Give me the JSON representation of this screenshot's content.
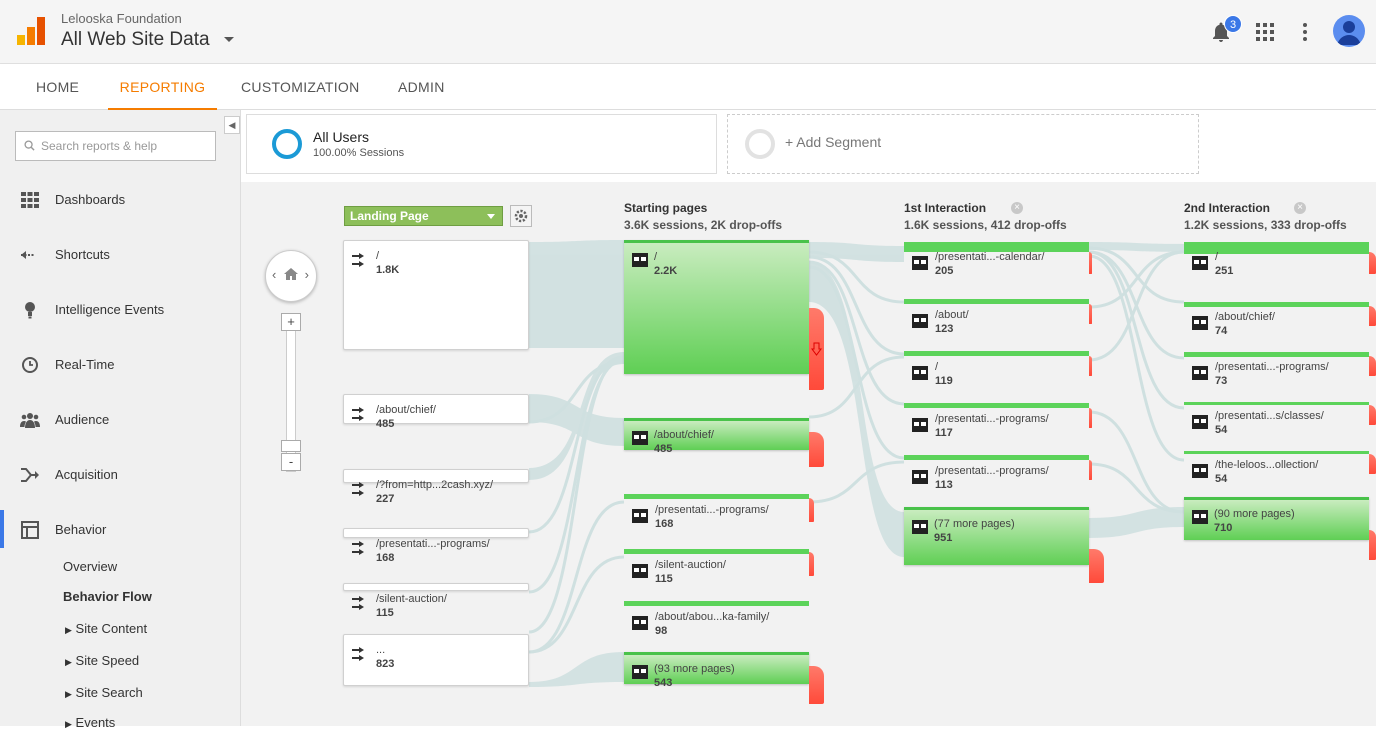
{
  "header": {
    "org": "Lelooska Foundation",
    "property": "All Web Site Data",
    "notification_count": "3"
  },
  "nav_tabs": [
    "HOME",
    "REPORTING",
    "CUSTOMIZATION",
    "ADMIN"
  ],
  "active_tab": "REPORTING",
  "sidebar": {
    "search_placeholder": "Search reports & help",
    "items": [
      "Dashboards",
      "Shortcuts",
      "Intelligence Events",
      "Real-Time",
      "Audience",
      "Acquisition",
      "Behavior"
    ],
    "behavior_sub": [
      "Overview",
      "Behavior Flow",
      "Site Content",
      "Site Speed",
      "Site Search",
      "Events"
    ]
  },
  "segments": {
    "all_users": "All Users",
    "all_users_sub": "100.00% Sessions",
    "add_segment": "+ Add Segment"
  },
  "flow": {
    "dimension": "Landing Page",
    "columns": [
      {
        "title": "Starting pages",
        "sub": "3.6K sessions, 2K drop-offs"
      },
      {
        "title": "1st Interaction",
        "sub": "1.6K sessions, 412 drop-offs"
      },
      {
        "title": "2nd Interaction",
        "sub": "1.2K sessions, 333 drop-offs"
      }
    ],
    "landing": [
      {
        "label": "/",
        "count": "1.8K"
      },
      {
        "label": "/about/chief/",
        "count": "485"
      },
      {
        "label": "/?from=http...2cash.xyz/",
        "count": "227"
      },
      {
        "label": "/presentati...-programs/",
        "count": "168"
      },
      {
        "label": "/silent-auction/",
        "count": "115"
      },
      {
        "label": "...",
        "count": "823"
      }
    ],
    "starting": [
      {
        "label": "/",
        "count": "2.2K"
      },
      {
        "label": "/about/chief/",
        "count": "485"
      },
      {
        "label": "/presentati...-programs/",
        "count": "168"
      },
      {
        "label": "/silent-auction/",
        "count": "115"
      },
      {
        "label": "/about/abou...ka-family/",
        "count": "98"
      },
      {
        "label": "(93 more pages)",
        "count": "543"
      }
    ],
    "first": [
      {
        "label": "/presentati...-calendar/",
        "count": "205"
      },
      {
        "label": "/about/",
        "count": "123"
      },
      {
        "label": "/",
        "count": "119"
      },
      {
        "label": "/presentati...-programs/",
        "count": "117"
      },
      {
        "label": "/presentati...-programs/",
        "count": "113"
      },
      {
        "label": "(77 more pages)",
        "count": "951"
      }
    ],
    "second": [
      {
        "label": "/",
        "count": "251"
      },
      {
        "label": "/about/chief/",
        "count": "74"
      },
      {
        "label": "/presentati...-programs/",
        "count": "73"
      },
      {
        "label": "/presentati...s/classes/",
        "count": "54"
      },
      {
        "label": "/the-leloos...ollection/",
        "count": "54"
      },
      {
        "label": "(90 more pages)",
        "count": "710"
      }
    ]
  },
  "colors": {
    "accent": "#f57c00",
    "node_green": "#5fcf54",
    "dropoff_red": "#ff4a3a",
    "flow": "#cfe0e0"
  }
}
